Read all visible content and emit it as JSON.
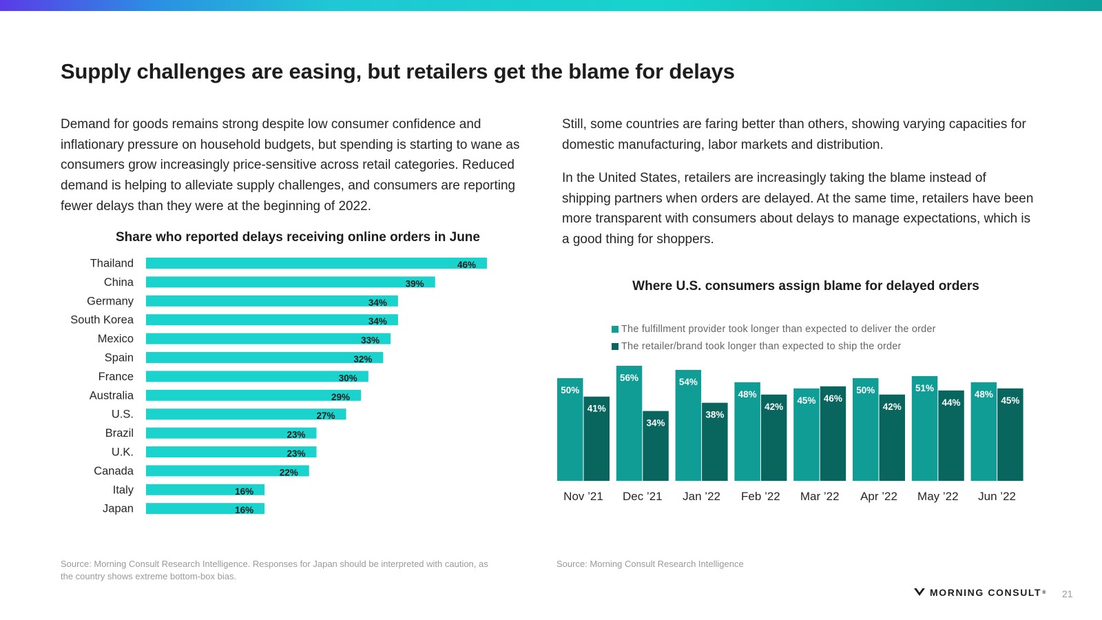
{
  "title": "Supply challenges are easing, but retailers get the blame for delays",
  "left_paragraph": "Demand for goods remains strong despite low consumer confidence and inflationary pressure on household budgets, but spending is starting to wane as consumers grow increasingly price-sensitive across retail categories. Reduced demand is helping to alleviate supply challenges, and consumers are reporting fewer delays than they were at the beginning of 2022.",
  "right_paragraphs": [
    "Still, some countries are faring better than others, showing varying capacities for domestic manufacturing, labor markets and distribution.",
    "In the United States, retailers are increasingly taking the blame instead of shipping partners when orders are delayed. At the same time, retailers have been more transparent with consumers about delays to manage expectations, which is a good thing for shoppers."
  ],
  "colors": {
    "accent_cyan": "#19d3cc",
    "teal_light": "#0f9d96",
    "teal_dark": "#08665f"
  },
  "chart_data": [
    {
      "type": "bar",
      "orientation": "horizontal",
      "title": "Share who reported delays receiving online orders in June",
      "categories": [
        "Thailand",
        "China",
        "Germany",
        "South Korea",
        "Mexico",
        "Spain",
        "France",
        "Australia",
        "U.S.",
        "Brazil",
        "U.K.",
        "Canada",
        "Italy",
        "Japan"
      ],
      "values": [
        46,
        39,
        34,
        34,
        33,
        32,
        30,
        29,
        27,
        23,
        23,
        22,
        16,
        16
      ],
      "value_labels": [
        "46%",
        "39%",
        "34%",
        "34%",
        "33%",
        "32%",
        "30%",
        "29%",
        "27%",
        "23%",
        "23%",
        "22%",
        "16%",
        "16%"
      ],
      "xlim": [
        0,
        46
      ]
    },
    {
      "type": "bar",
      "orientation": "vertical",
      "title": "Where U.S. consumers assign blame for delayed orders",
      "categories": [
        "Nov ’21",
        "Dec ’21",
        "Jan ’22",
        "Feb ’22",
        "Mar ’22",
        "Apr ’22",
        "May ’22",
        "Jun ’22"
      ],
      "series": [
        {
          "name": "The fulfillment provider took longer than expected to deliver the order",
          "values": [
            50,
            56,
            54,
            48,
            45,
            50,
            51,
            48
          ],
          "color": "#0f9d96"
        },
        {
          "name": "The retailer/brand took longer than expected to ship the order",
          "values": [
            41,
            34,
            38,
            42,
            46,
            42,
            44,
            45
          ],
          "color": "#08665f"
        }
      ],
      "legend": "top",
      "ylim": [
        0,
        56
      ]
    }
  ],
  "sources": {
    "left": "Source: Morning Consult Research Intelligence. Responses for Japan should be interpreted with caution, as the country shows extreme bottom-box bias.",
    "right": "Source: Morning Consult Research Intelligence"
  },
  "footer": {
    "brand": "MORNING CONSULT",
    "brand_mark": "®",
    "page_number": "21"
  }
}
